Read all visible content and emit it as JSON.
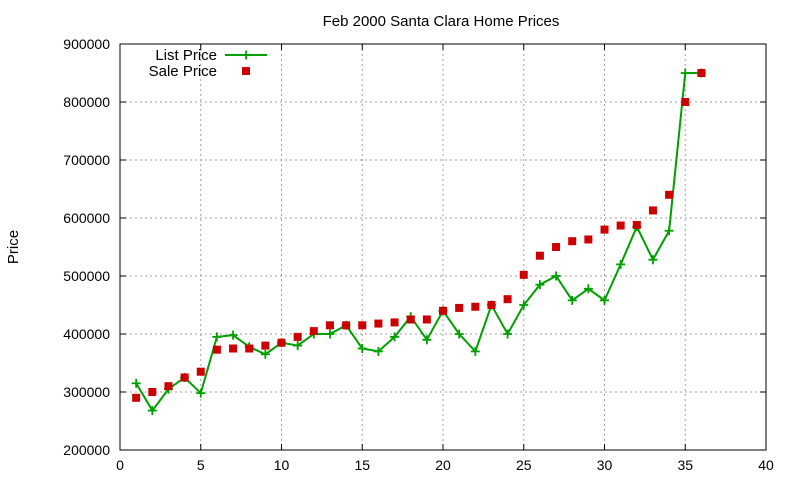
{
  "chart_data": {
    "type": "line",
    "title": "Feb 2000 Santa Clara Home Prices",
    "xlabel": "",
    "ylabel": "Price",
    "xlim": [
      0,
      40
    ],
    "ylim": [
      200000,
      900000
    ],
    "xticks": [
      0,
      5,
      10,
      15,
      20,
      25,
      30,
      35,
      40
    ],
    "yticks": [
      200000,
      300000,
      400000,
      500000,
      600000,
      700000,
      800000,
      900000
    ],
    "grid": true,
    "legend_position": "top-left",
    "series": [
      {
        "name": "List Price",
        "style": "line+cross",
        "color": "#00a000",
        "x": [
          1,
          2,
          3,
          4,
          5,
          6,
          7,
          8,
          9,
          10,
          11,
          12,
          13,
          14,
          15,
          16,
          17,
          18,
          19,
          20,
          21,
          22,
          23,
          24,
          25,
          26,
          27,
          28,
          29,
          30,
          31,
          32,
          33,
          34,
          35,
          36
        ],
        "values": [
          315000,
          268000,
          305000,
          325000,
          298000,
          395000,
          398000,
          378000,
          365000,
          385000,
          380000,
          400000,
          400000,
          415000,
          375000,
          370000,
          395000,
          430000,
          390000,
          440000,
          400000,
          370000,
          450000,
          400000,
          450000,
          485000,
          500000,
          458000,
          478000,
          458000,
          520000,
          585000,
          528000,
          578000,
          850000,
          850000
        ]
      },
      {
        "name": "Sale Price",
        "style": "square",
        "color": "#cc0000",
        "x": [
          1,
          2,
          3,
          4,
          5,
          6,
          7,
          8,
          9,
          10,
          11,
          12,
          13,
          14,
          15,
          16,
          17,
          18,
          19,
          20,
          21,
          22,
          23,
          24,
          25,
          26,
          27,
          28,
          29,
          30,
          31,
          32,
          33,
          34,
          35,
          36
        ],
        "values": [
          290000,
          300000,
          310000,
          325000,
          335000,
          373000,
          375000,
          375000,
          380000,
          385000,
          395000,
          405000,
          415000,
          415000,
          415000,
          418000,
          420000,
          425000,
          425000,
          440000,
          445000,
          447000,
          450000,
          460000,
          502000,
          535000,
          550000,
          560000,
          563000,
          580000,
          587000,
          588000,
          613000,
          640000,
          800000,
          850000
        ]
      }
    ]
  }
}
